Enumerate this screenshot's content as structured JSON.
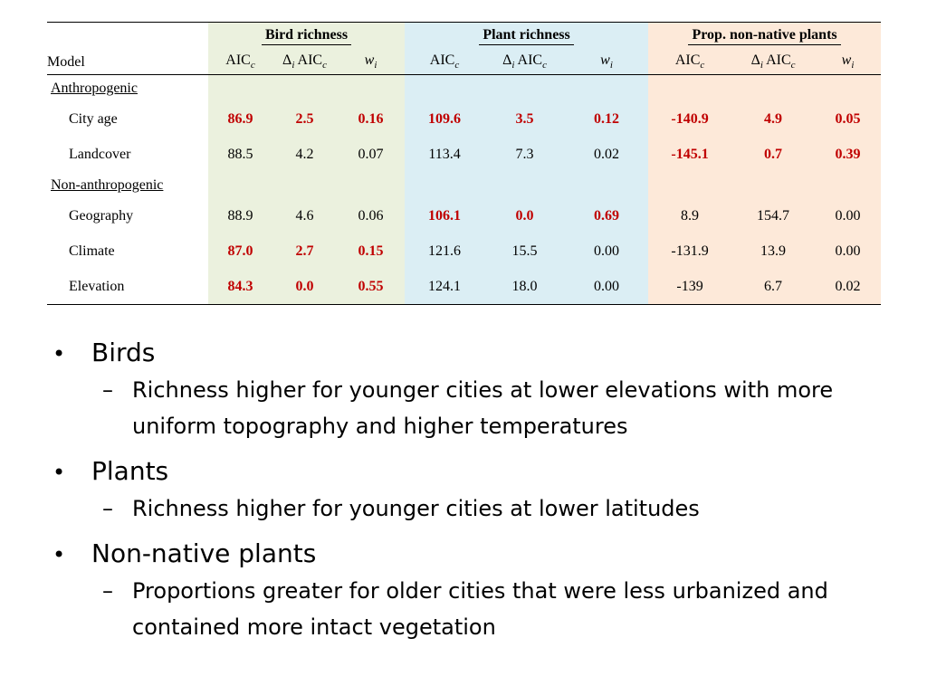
{
  "table": {
    "model_header": "Model",
    "groups": [
      {
        "title": "Bird richness",
        "tone": "bird"
      },
      {
        "title": "Plant richness",
        "tone": "plant"
      },
      {
        "title": "Prop. non-native plants",
        "tone": "nonnat"
      }
    ],
    "col_labels": {
      "aic": "AIC",
      "aic_sub": "c",
      "delta": "Δ",
      "delta_sub": "i",
      "w": "w",
      "w_sub": "i"
    },
    "sections": [
      {
        "label": "Anthropogenic",
        "rows": [
          {
            "model": "City age",
            "values": [
              "86.9",
              "2.5",
              "0.16",
              "109.6",
              "3.5",
              "0.12",
              "-140.9",
              "4.9",
              "0.05"
            ],
            "highlight": [
              true,
              true,
              true,
              true,
              true,
              true,
              true,
              true,
              true
            ]
          },
          {
            "model": "Landcover",
            "values": [
              "88.5",
              "4.2",
              "0.07",
              "113.4",
              "7.3",
              "0.02",
              "-145.1",
              "0.7",
              "0.39"
            ],
            "highlight": [
              false,
              false,
              false,
              false,
              false,
              false,
              true,
              true,
              true
            ]
          }
        ]
      },
      {
        "label": "Non-anthropogenic",
        "rows": [
          {
            "model": "Geography",
            "values": [
              "88.9",
              "4.6",
              "0.06",
              "106.1",
              "0.0",
              "0.69",
              "8.9",
              "154.7",
              "0.00"
            ],
            "highlight": [
              false,
              false,
              false,
              true,
              true,
              true,
              false,
              false,
              false
            ]
          },
          {
            "model": "Climate",
            "values": [
              "87.0",
              "2.7",
              "0.15",
              "121.6",
              "15.5",
              "0.00",
              "-131.9",
              "13.9",
              "0.00"
            ],
            "highlight": [
              true,
              true,
              true,
              false,
              false,
              false,
              false,
              false,
              false
            ]
          },
          {
            "model": "Elevation",
            "values": [
              "84.3",
              "0.0",
              "0.55",
              "124.1",
              "18.0",
              "0.00",
              "-139",
              "6.7",
              "0.02"
            ],
            "highlight": [
              true,
              true,
              true,
              false,
              false,
              false,
              false,
              false,
              false
            ]
          }
        ]
      }
    ],
    "colors": {
      "bird": "#ebf1de",
      "plant": "#dbeef4",
      "nonnat": "#fde9d9",
      "highlight": "#c00000"
    }
  },
  "bullets": [
    {
      "bullet": "•",
      "text": "Birds",
      "sub": [
        {
          "dash": "–",
          "text": "Richness higher for younger cities at lower elevations with more uniform topography and higher temperatures"
        }
      ]
    },
    {
      "bullet": "•",
      "text": "Plants",
      "sub": [
        {
          "dash": "–",
          "text": "Richness higher for younger cities at lower latitudes"
        }
      ]
    },
    {
      "bullet": "•",
      "text": "Non-native plants",
      "sub": [
        {
          "dash": "–",
          "text": "Proportions greater for older cities that were less urbanized and contained more intact vegetation"
        }
      ]
    }
  ]
}
